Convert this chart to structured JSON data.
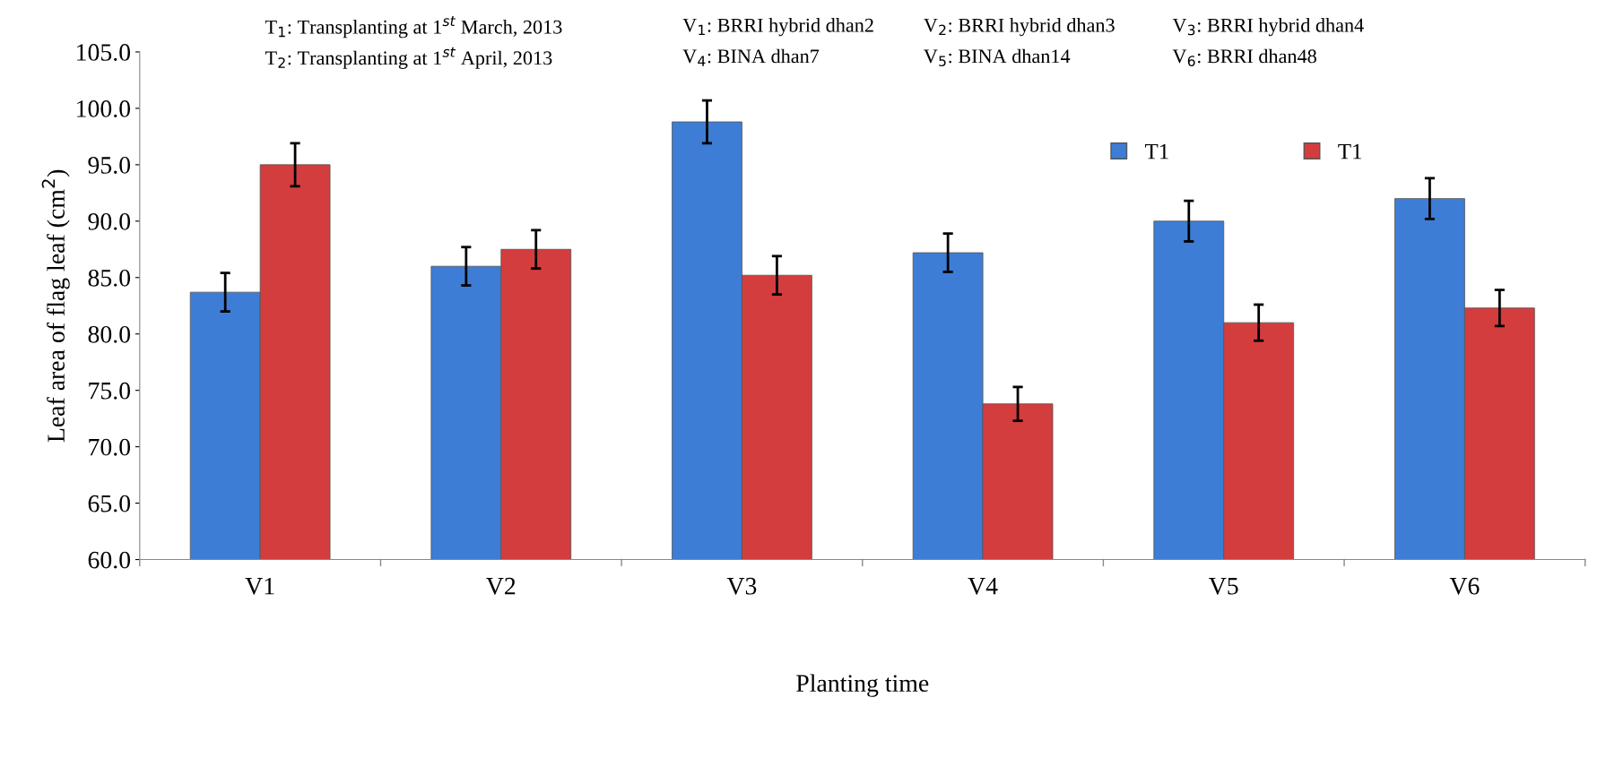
{
  "chart_data": {
    "type": "bar",
    "xlabel": "Planting time",
    "ylabel": "Leaf area of flag leaf (cm$^{2}$)",
    "categories": [
      "V1",
      "V2",
      "V3",
      "V4",
      "V5",
      "V6"
    ],
    "series": [
      {
        "name": "T1",
        "color": "#3d7dd6",
        "values": [
          83.7,
          86.0,
          98.8,
          87.2,
          90.0,
          92.0
        ],
        "errors": [
          1.7,
          1.7,
          1.9,
          1.7,
          1.8,
          1.8
        ]
      },
      {
        "name": "T1",
        "color": "#d33d3d",
        "values": [
          95.0,
          87.5,
          85.2,
          73.8,
          81.0,
          82.3
        ],
        "errors": [
          1.9,
          1.7,
          1.7,
          1.5,
          1.6,
          1.6
        ]
      }
    ],
    "ylim": [
      60,
      105
    ],
    "yticks": [
      {
        "value": 60,
        "label": "60.0"
      },
      {
        "value": 65,
        "label": "65.0"
      },
      {
        "value": 70,
        "label": "70.0"
      },
      {
        "value": 75,
        "label": "75.0"
      },
      {
        "value": 80,
        "label": "80.0"
      },
      {
        "value": 85,
        "label": "85.0"
      },
      {
        "value": 90,
        "label": "90.0"
      },
      {
        "value": 95,
        "label": "95.0"
      },
      {
        "value": 100,
        "label": "100.0"
      },
      {
        "value": 105,
        "label": "105.0"
      }
    ],
    "annotations": [
      "T$_{1}$: Transplanting at 1$^{st}$ March, 2013",
      "V$_{1}$: BRRI hybrid dhan2",
      "V$_{2}$: BRRI hybrid dhan3",
      "V$_{3}$: BRRI hybrid dhan4",
      "T$_{2}$: Transplanting at 1$^{st}$ April, 2013",
      "V$_{4}$: BINA dhan7",
      "V$_{5}$: BINA dhan14",
      "V$_{6}$: BRRI dhan48"
    ],
    "grid": false,
    "legend": "top right"
  }
}
